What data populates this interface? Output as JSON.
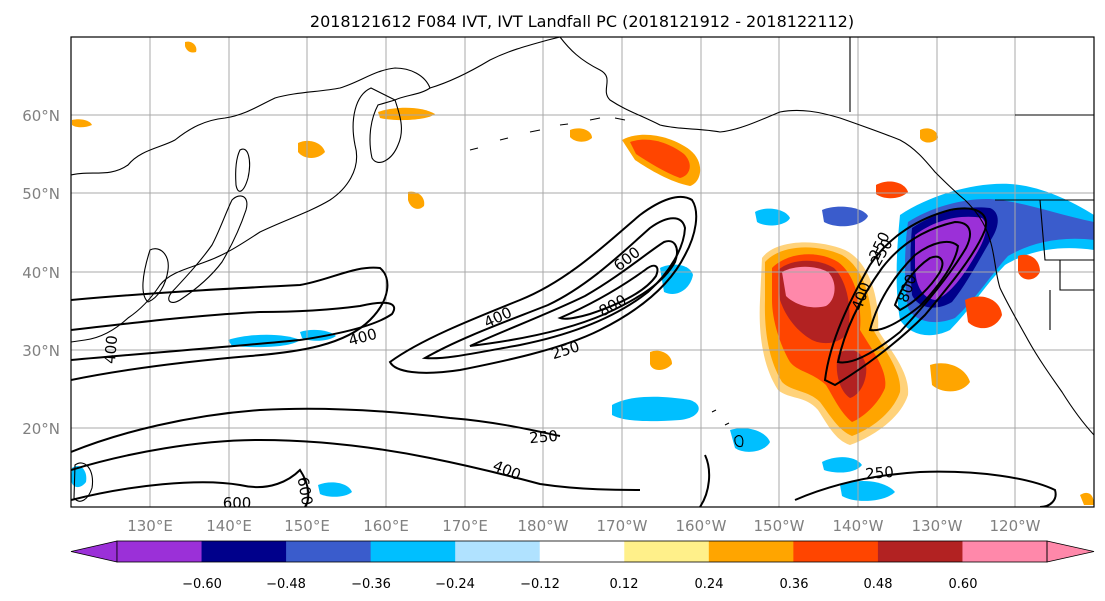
{
  "title": "2018121612 F084 IVT, IVT Landfall PC (2018121912 - 2018122112)",
  "lat_labels": [
    "60°N",
    "50°N",
    "40°N",
    "30°N",
    "20°N"
  ],
  "lon_labels": [
    "130°E",
    "140°E",
    "150°E",
    "160°E",
    "170°E",
    "180°W",
    "170°W",
    "160°W",
    "150°W",
    "140°W",
    "130°W",
    "120°W"
  ],
  "contour_labels": [
    "600",
    "800",
    "400",
    "250",
    "400",
    "400",
    "250",
    "400",
    "250",
    "800",
    "250",
    "600",
    "400",
    "250",
    "600"
  ],
  "colorbar": {
    "ticks": [
      "−0.60",
      "−0.48",
      "−0.36",
      "−0.24",
      "−0.12",
      "0.12",
      "0.24",
      "0.36",
      "0.48",
      "0.60"
    ],
    "colors": [
      "#9b30d8",
      "#00008b",
      "#3a5ccc",
      "#00bfff",
      "#b0e2ff",
      "#ffffff",
      "#fff08a",
      "#ffa500",
      "#ff4500",
      "#b22222",
      "#ff88aa",
      "#ff88aa"
    ],
    "extend_low_color": "#9b30d8",
    "extend_high_color": "#ff88aa"
  }
}
